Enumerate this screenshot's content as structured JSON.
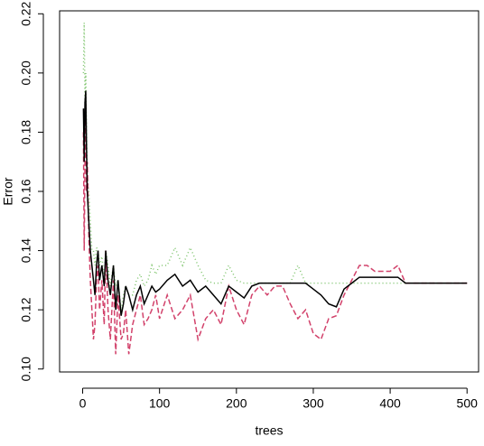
{
  "chart_data": {
    "type": "line",
    "xlabel": "trees",
    "ylabel": "Error",
    "x": [
      1,
      2,
      3,
      4,
      5,
      6,
      8,
      10,
      12,
      14,
      16,
      18,
      20,
      22,
      25,
      28,
      30,
      33,
      36,
      40,
      43,
      46,
      50,
      53,
      56,
      60,
      65,
      70,
      75,
      80,
      85,
      90,
      95,
      100,
      110,
      120,
      130,
      140,
      150,
      160,
      170,
      180,
      190,
      200,
      210,
      220,
      230,
      240,
      250,
      260,
      270,
      280,
      290,
      300,
      310,
      320,
      330,
      340,
      350,
      360,
      370,
      380,
      390,
      400,
      410,
      420,
      430,
      440,
      450,
      460,
      470,
      480,
      490,
      500
    ],
    "series": [
      {
        "color": "#000000",
        "dash": "none",
        "values": [
          0.188,
          0.17,
          0.19,
          0.194,
          0.175,
          0.16,
          0.15,
          0.14,
          0.135,
          0.13,
          0.125,
          0.135,
          0.14,
          0.13,
          0.135,
          0.128,
          0.14,
          0.13,
          0.125,
          0.135,
          0.12,
          0.13,
          0.118,
          0.122,
          0.128,
          0.125,
          0.12,
          0.125,
          0.128,
          0.122,
          0.125,
          0.128,
          0.126,
          0.127,
          0.13,
          0.132,
          0.128,
          0.13,
          0.126,
          0.128,
          0.125,
          0.122,
          0.128,
          0.126,
          0.124,
          0.128,
          0.129,
          0.129,
          0.129,
          0.129,
          0.129,
          0.129,
          0.129,
          0.127,
          0.125,
          0.122,
          0.121,
          0.127,
          0.129,
          0.131,
          0.131,
          0.131,
          0.131,
          0.131,
          0.131,
          0.129,
          0.129,
          0.129,
          0.129,
          0.129,
          0.129,
          0.129,
          0.129,
          0.129
        ]
      },
      {
        "color": "#d2426b",
        "dash": "6,3",
        "values": [
          0.18,
          0.14,
          0.17,
          0.19,
          0.16,
          0.17,
          0.145,
          0.13,
          0.12,
          0.11,
          0.115,
          0.13,
          0.135,
          0.12,
          0.13,
          0.115,
          0.14,
          0.12,
          0.11,
          0.13,
          0.105,
          0.125,
          0.11,
          0.112,
          0.12,
          0.105,
          0.115,
          0.12,
          0.125,
          0.115,
          0.117,
          0.12,
          0.125,
          0.117,
          0.125,
          0.117,
          0.12,
          0.125,
          0.11,
          0.117,
          0.12,
          0.115,
          0.128,
          0.12,
          0.115,
          0.125,
          0.128,
          0.125,
          0.128,
          0.128,
          0.122,
          0.117,
          0.12,
          0.112,
          0.11,
          0.117,
          0.118,
          0.125,
          0.13,
          0.135,
          0.135,
          0.133,
          0.133,
          0.133,
          0.135,
          0.129,
          0.129,
          0.129,
          0.129,
          0.129,
          0.129,
          0.129,
          0.129,
          0.129
        ]
      },
      {
        "color": "#7cc36a",
        "dash": "1,3",
        "values": [
          0.2,
          0.217,
          0.19,
          0.2,
          0.18,
          0.165,
          0.16,
          0.15,
          0.14,
          0.14,
          0.135,
          0.141,
          0.14,
          0.135,
          0.138,
          0.13,
          0.14,
          0.135,
          0.128,
          0.135,
          0.128,
          0.13,
          0.12,
          0.125,
          0.128,
          0.125,
          0.125,
          0.13,
          0.132,
          0.128,
          0.13,
          0.135,
          0.132,
          0.135,
          0.135,
          0.141,
          0.135,
          0.141,
          0.135,
          0.13,
          0.129,
          0.129,
          0.135,
          0.13,
          0.129,
          0.129,
          0.129,
          0.129,
          0.129,
          0.129,
          0.129,
          0.135,
          0.129,
          0.129,
          0.129,
          0.129,
          0.129,
          0.129,
          0.129,
          0.129,
          0.129,
          0.129,
          0.129,
          0.129,
          0.129,
          0.129,
          0.129,
          0.129,
          0.129,
          0.129,
          0.129,
          0.129,
          0.129,
          0.129
        ]
      }
    ],
    "xlim": [
      -30,
      515
    ],
    "ylim": [
      0.099,
      0.221
    ],
    "xticks": [
      0,
      100,
      200,
      300,
      400,
      500
    ],
    "yticks": [
      {
        "value": 0.1,
        "label": "0.10"
      },
      0.12,
      0.14,
      0.16,
      0.18,
      {
        "value": 0.2,
        "label": "0.20"
      },
      0.22
    ]
  }
}
